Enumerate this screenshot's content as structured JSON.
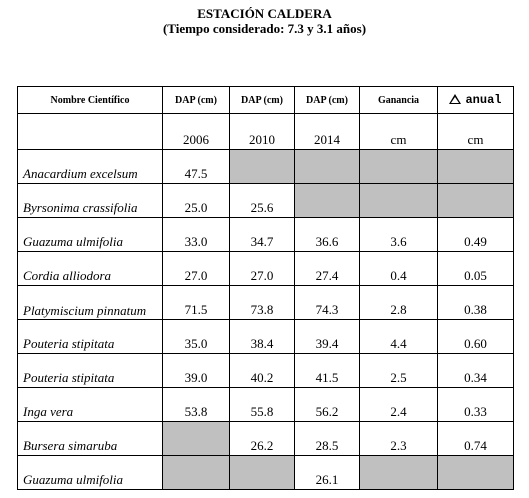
{
  "title": "ESTACIÓN CALDERA",
  "subtitle": "(Tiempo considerado: 7.3 y 3.1 años)",
  "headers": [
    "Nombre Científico",
    "DAP (cm)",
    "DAP (cm)",
    "DAP (cm)",
    "Ganancia",
    "anual"
  ],
  "subheaders": [
    "",
    "2006",
    "2010",
    "2014",
    "cm",
    "cm"
  ],
  "rows": [
    {
      "name": "Anacardium excelsum",
      "cells": [
        "47.5",
        "",
        "",
        "",
        ""
      ],
      "gray": [
        false,
        true,
        true,
        true,
        true
      ]
    },
    {
      "name": "Byrsonima crassifolia",
      "cells": [
        "25.0",
        "25.6",
        "",
        "",
        ""
      ],
      "gray": [
        false,
        false,
        true,
        true,
        true
      ]
    },
    {
      "name": "Guazuma ulmifolia",
      "cells": [
        "33.0",
        "34.7",
        "36.6",
        "3.6",
        "0.49"
      ],
      "gray": [
        false,
        false,
        false,
        false,
        false
      ]
    },
    {
      "name": "Cordia alliodora",
      "cells": [
        "27.0",
        "27.0",
        "27.4",
        "0.4",
        "0.05"
      ],
      "gray": [
        false,
        false,
        false,
        false,
        false
      ]
    },
    {
      "name": "Platymiscium pinnatum",
      "cells": [
        "71.5",
        "73.8",
        "74.3",
        "2.8",
        "0.38"
      ],
      "gray": [
        false,
        false,
        false,
        false,
        false
      ]
    },
    {
      "name": "Pouteria stipitata",
      "cells": [
        "35.0",
        "38.4",
        "39.4",
        "4.4",
        "0.60"
      ],
      "gray": [
        false,
        false,
        false,
        false,
        false
      ]
    },
    {
      "name": "Pouteria stipitata",
      "cells": [
        "39.0",
        "40.2",
        "41.5",
        "2.5",
        "0.34"
      ],
      "gray": [
        false,
        false,
        false,
        false,
        false
      ]
    },
    {
      "name": "Inga vera",
      "cells": [
        "53.8",
        "55.8",
        "56.2",
        "2.4",
        "0.33"
      ],
      "gray": [
        false,
        false,
        false,
        false,
        false
      ]
    },
    {
      "name": "Bursera simaruba",
      "cells": [
        "",
        "26.2",
        "28.5",
        "2.3",
        "0.74"
      ],
      "gray": [
        true,
        false,
        false,
        false,
        false
      ]
    },
    {
      "name": "Guazuma ulmifolia",
      "cells": [
        "",
        "",
        "26.1",
        "",
        ""
      ],
      "gray": [
        true,
        true,
        false,
        true,
        true
      ]
    }
  ]
}
